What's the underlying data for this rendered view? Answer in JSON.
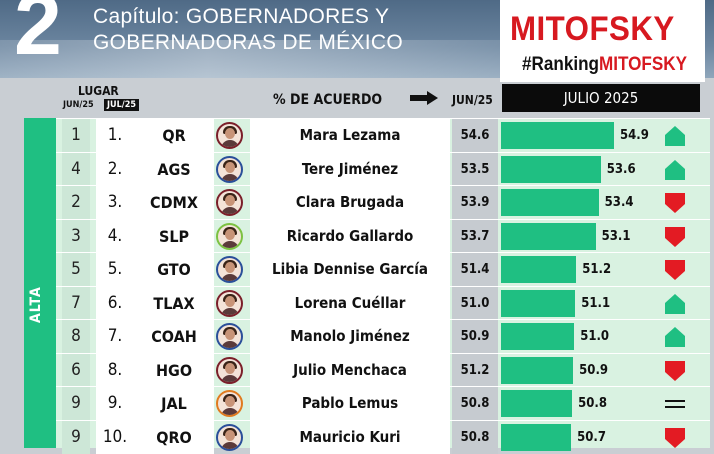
{
  "header": {
    "chapter_number": "2",
    "chapter_line1": "Capítulo: GOBERNADORES Y",
    "chapter_line2": "GOBERNADORAS DE MÉXICO",
    "logo_main": "MITOFSKY",
    "logo_tag_prefix": "#Ranking",
    "logo_tag_suffix": "MITOFSKY"
  },
  "columns": {
    "lugar": "LUGAR",
    "jun": "JUN/25",
    "jul": "JUL/25",
    "acuerdo": "% DE ACUERDO",
    "jun_value": "JUN/25",
    "julio": "JULIO 2025"
  },
  "group_label": "ALTA",
  "colors": {
    "accent_green": "#1fbf82",
    "up_green": "#1fbf82",
    "down_red": "#e31b23",
    "brand_red": "#d71920"
  },
  "rows": [
    {
      "prev": "1",
      "pos": "1.",
      "state": "QR",
      "name": "Mara Lezama",
      "jun": "54.6",
      "jul": "54.9",
      "jul_value": 54.9,
      "trend": "up",
      "avatar": "woman-avatar",
      "ring": "#7b1f2a"
    },
    {
      "prev": "4",
      "pos": "2.",
      "state": "AGS",
      "name": "Tere Jiménez",
      "jun": "53.5",
      "jul": "53.6",
      "jul_value": 53.6,
      "trend": "up",
      "avatar": "woman-avatar",
      "ring": "#2a4f9a"
    },
    {
      "prev": "2",
      "pos": "3.",
      "state": "CDMX",
      "name": "Clara Brugada",
      "jun": "53.9",
      "jul": "53.4",
      "jul_value": 53.4,
      "trend": "down",
      "avatar": "woman-avatar",
      "ring": "#7b1f2a"
    },
    {
      "prev": "3",
      "pos": "4.",
      "state": "SLP",
      "name": "Ricardo Gallardo",
      "jun": "53.7",
      "jul": "53.1",
      "jul_value": 53.1,
      "trend": "down",
      "avatar": "man-avatar",
      "ring": "#7cc242"
    },
    {
      "prev": "5",
      "pos": "5.",
      "state": "GTO",
      "name": "Libia Dennise García",
      "jun": "51.4",
      "jul": "51.2",
      "jul_value": 51.2,
      "trend": "down",
      "avatar": "woman-avatar",
      "ring": "#2a4f9a"
    },
    {
      "prev": "7",
      "pos": "6.",
      "state": "TLAX",
      "name": "Lorena Cuéllar",
      "jun": "51.0",
      "jul": "51.1",
      "jul_value": 51.1,
      "trend": "up",
      "avatar": "woman-avatar",
      "ring": "#7b1f2a"
    },
    {
      "prev": "8",
      "pos": "7.",
      "state": "COAH",
      "name": "Manolo Jiménez",
      "jun": "50.9",
      "jul": "51.0",
      "jul_value": 51.0,
      "trend": "up",
      "avatar": "man-avatar",
      "ring": "#2a4f9a"
    },
    {
      "prev": "6",
      "pos": "8.",
      "state": "HGO",
      "name": "Julio Menchaca",
      "jun": "51.2",
      "jul": "50.9",
      "jul_value": 50.9,
      "trend": "down",
      "avatar": "man-avatar",
      "ring": "#7b1f2a"
    },
    {
      "prev": "9",
      "pos": "9.",
      "state": "JAL",
      "name": "Pablo Lemus",
      "jun": "50.8",
      "jul": "50.8",
      "jul_value": 50.8,
      "trend": "equal",
      "avatar": "man-avatar",
      "ring": "#e07a1f"
    },
    {
      "prev": "9",
      "pos": "10.",
      "state": "QRO",
      "name": "Mauricio Kuri",
      "jun": "50.8",
      "jul": "50.7",
      "jul_value": 50.7,
      "trend": "down",
      "avatar": "man-avatar",
      "ring": "#2a4f9a"
    }
  ]
}
